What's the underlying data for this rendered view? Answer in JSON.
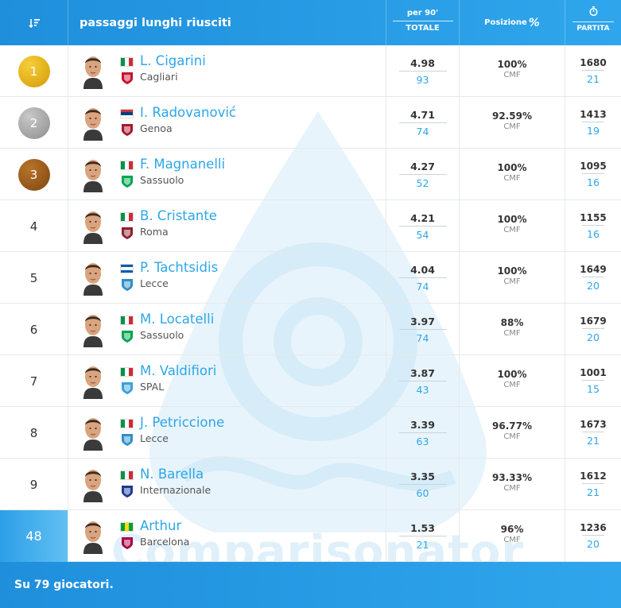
{
  "header": {
    "sort_icon": "sort-descending-icon",
    "title": "passaggi lunghi riusciti",
    "per90_label": "per 90'",
    "total_label": "TOTALE",
    "position_label": "Posizione",
    "position_symbol": "%",
    "match_icon": "stopwatch-icon",
    "match_label": "PARTITA"
  },
  "watermark_text": "Comparisonator",
  "colors": {
    "accent": "#2da6e8",
    "header_gradient_start": "#1f8fdc",
    "header_gradient_end": "#2fa6ec",
    "gold": "#e6b21a",
    "silver": "#a8a8a8",
    "bronze": "#9a5a1c"
  },
  "players": [
    {
      "rank": "1",
      "medal": "gold",
      "name": "L. Cigarini",
      "team": "Cagliari",
      "flag": [
        "#009246",
        "#ffffff",
        "#ce2b37"
      ],
      "crest": "cagliari-crest-icon",
      "crest_color": "#c8102e",
      "per90": "4.98",
      "total": "93",
      "position_pct": "100%",
      "position_role": "CMF",
      "minutes": "1680",
      "matches": "21"
    },
    {
      "rank": "2",
      "medal": "silver",
      "name": "I. Radovanović",
      "team": "Genoa",
      "flag": [
        "#c6363c",
        "#0c4076",
        "#ffffff"
      ],
      "flag_dir": "h",
      "crest": "genoa-crest-icon",
      "crest_color": "#a6192e",
      "per90": "4.71",
      "total": "74",
      "position_pct": "92.59%",
      "position_role": "CMF",
      "minutes": "1413",
      "matches": "19"
    },
    {
      "rank": "3",
      "medal": "bronze",
      "name": "F. Magnanelli",
      "team": "Sassuolo",
      "flag": [
        "#009246",
        "#ffffff",
        "#ce2b37"
      ],
      "crest": "sassuolo-crest-icon",
      "crest_color": "#00a651",
      "per90": "4.27",
      "total": "52",
      "position_pct": "100%",
      "position_role": "CMF",
      "minutes": "1095",
      "matches": "16"
    },
    {
      "rank": "4",
      "medal": "",
      "name": "B. Cristante",
      "team": "Roma",
      "flag": [
        "#009246",
        "#ffffff",
        "#ce2b37"
      ],
      "crest": "roma-crest-icon",
      "crest_color": "#8e1f2f",
      "per90": "4.21",
      "total": "54",
      "position_pct": "100%",
      "position_role": "CMF",
      "minutes": "1155",
      "matches": "16"
    },
    {
      "rank": "5",
      "medal": "",
      "name": "P. Tachtsidis",
      "team": "Lecce",
      "flag": [
        "#0d5eaf",
        "#ffffff",
        "#0d5eaf"
      ],
      "flag_dir": "h",
      "crest": "lecce-crest-icon",
      "crest_color": "#2f8fc9",
      "per90": "4.04",
      "total": "74",
      "position_pct": "100%",
      "position_role": "CMF",
      "minutes": "1649",
      "matches": "20"
    },
    {
      "rank": "6",
      "medal": "",
      "name": "M. Locatelli",
      "team": "Sassuolo",
      "flag": [
        "#009246",
        "#ffffff",
        "#ce2b37"
      ],
      "crest": "sassuolo-crest-icon",
      "crest_color": "#00a651",
      "per90": "3.97",
      "total": "74",
      "position_pct": "88%",
      "position_role": "CMF",
      "minutes": "1679",
      "matches": "20"
    },
    {
      "rank": "7",
      "medal": "",
      "name": "M. Valdifiori",
      "team": "SPAL",
      "flag": [
        "#009246",
        "#ffffff",
        "#ce2b37"
      ],
      "crest": "spal-crest-icon",
      "crest_color": "#3aa0dc",
      "per90": "3.87",
      "total": "43",
      "position_pct": "100%",
      "position_role": "CMF",
      "minutes": "1001",
      "matches": "15"
    },
    {
      "rank": "8",
      "medal": "",
      "name": "J. Petriccione",
      "team": "Lecce",
      "flag": [
        "#009246",
        "#ffffff",
        "#ce2b37"
      ],
      "crest": "lecce-crest-icon",
      "crest_color": "#2f8fc9",
      "per90": "3.39",
      "total": "63",
      "position_pct": "96.77%",
      "position_role": "CMF",
      "minutes": "1673",
      "matches": "21"
    },
    {
      "rank": "9",
      "medal": "",
      "name": "N. Barella",
      "team": "Internazionale",
      "flag": [
        "#009246",
        "#ffffff",
        "#ce2b37"
      ],
      "crest": "inter-crest-icon",
      "crest_color": "#1f3a93",
      "per90": "3.35",
      "total": "60",
      "position_pct": "93.33%",
      "position_role": "CMF",
      "minutes": "1612",
      "matches": "21"
    },
    {
      "rank": "48",
      "medal": "highlight",
      "name": "Arthur",
      "team": "Barcelona",
      "flag": [
        "#009c3b",
        "#ffdf00",
        "#009c3b"
      ],
      "crest": "barcelona-crest-icon",
      "crest_color": "#a50044",
      "per90": "1.53",
      "total": "21",
      "position_pct": "96%",
      "position_role": "CMF",
      "minutes": "1236",
      "matches": "20"
    }
  ],
  "footer": {
    "text": "Su 79 giocatori."
  }
}
